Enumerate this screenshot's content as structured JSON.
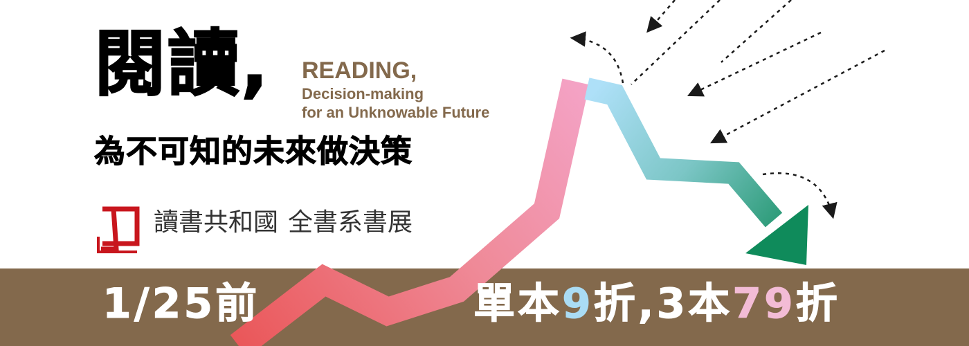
{
  "headline": {
    "title_zh": "閱讀,",
    "title_en_line1": "READING,",
    "title_en_line2": "Decision-making",
    "title_en_line3": "for an Unknowable Future",
    "subtitle_zh": "為不可知的未來做決策"
  },
  "brand": {
    "publisher": "讀書共和國",
    "event": "全書系書展"
  },
  "promo": {
    "deadline": "1/25前",
    "offer_part1": "單本",
    "offer_single_discount": "9",
    "offer_part2": "折,",
    "offer_qty": "3",
    "offer_part3": "本",
    "offer_bundle_discount": "79",
    "offer_part4": "折"
  },
  "colors": {
    "bar": "#83694c",
    "english_title": "#83694c",
    "logo_red": "#c8161d",
    "highlight_blue": "#aadcf4",
    "highlight_pink": "#f3bcd6",
    "arrow_up_start": "#ea5658",
    "arrow_up_end": "#f4a3c6",
    "arrow_down_start": "#aee0f8",
    "arrow_down_end": "#0f8b5b"
  },
  "decorations": {
    "arrow_graphic": "trend-arrow-icon",
    "dashed_arrows": "dashed-arrow-icon",
    "logo": "book-logo-icon"
  }
}
